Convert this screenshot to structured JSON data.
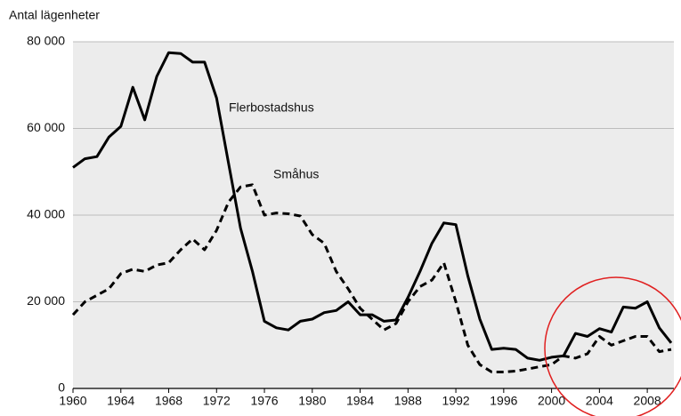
{
  "chart_data": {
    "type": "line",
    "ylabel": "Antal lägenheter",
    "x": [
      1960,
      1961,
      1962,
      1963,
      1964,
      1965,
      1966,
      1967,
      1968,
      1969,
      1970,
      1971,
      1972,
      1973,
      1974,
      1975,
      1976,
      1977,
      1978,
      1979,
      1980,
      1981,
      1982,
      1983,
      1984,
      1985,
      1986,
      1987,
      1988,
      1989,
      1990,
      1991,
      1992,
      1993,
      1994,
      1995,
      1996,
      1997,
      1998,
      1999,
      2000,
      2001,
      2002,
      2003,
      2004,
      2005,
      2006,
      2007,
      2008,
      2009,
      2010
    ],
    "series": [
      {
        "name": "Flerbostadshus",
        "color": "#000000",
        "dash": false,
        "values": [
          51000,
          53000,
          53500,
          58000,
          60500,
          69500,
          62000,
          72000,
          77500,
          77300,
          75300,
          75300,
          67000,
          52000,
          37000,
          27000,
          15500,
          14000,
          13500,
          15500,
          16000,
          17500,
          18000,
          20000,
          17000,
          17000,
          15500,
          15800,
          21000,
          27000,
          33500,
          38200,
          37800,
          26000,
          16000,
          9000,
          9300,
          9000,
          7000,
          6500,
          7200,
          7500,
          12700,
          12000,
          13800,
          13000,
          18800,
          18500,
          20000,
          14000,
          10500
        ]
      },
      {
        "name": "Småhus",
        "color": "#000000",
        "dash": true,
        "values": [
          17000,
          20000,
          21500,
          23000,
          26500,
          27500,
          27000,
          28500,
          29000,
          32000,
          34500,
          32000,
          36500,
          43000,
          46500,
          47000,
          40000,
          40500,
          40300,
          39800,
          35500,
          33500,
          27000,
          23000,
          18500,
          16000,
          13500,
          15000,
          20000,
          23500,
          25000,
          29000,
          20000,
          10000,
          5500,
          3800,
          3800,
          4000,
          4500,
          5000,
          5500,
          7500,
          7000,
          8000,
          12000,
          10000,
          11000,
          12000,
          12000,
          8500,
          9000
        ]
      }
    ],
    "xlim": [
      1960,
      2010
    ],
    "xticks": [
      1960,
      1964,
      1968,
      1972,
      1976,
      1980,
      1984,
      1988,
      1992,
      1996,
      2000,
      2004,
      2008
    ],
    "ylim": [
      0,
      80000
    ],
    "yticks": [
      {
        "value": 0,
        "label": "0"
      },
      {
        "value": 20000,
        "label": "20 000"
      },
      {
        "value": 40000,
        "label": "40 000"
      },
      {
        "value": 60000,
        "label": "60 000"
      },
      {
        "value": 80000,
        "label": "80 000"
      }
    ],
    "grid": true
  }
}
